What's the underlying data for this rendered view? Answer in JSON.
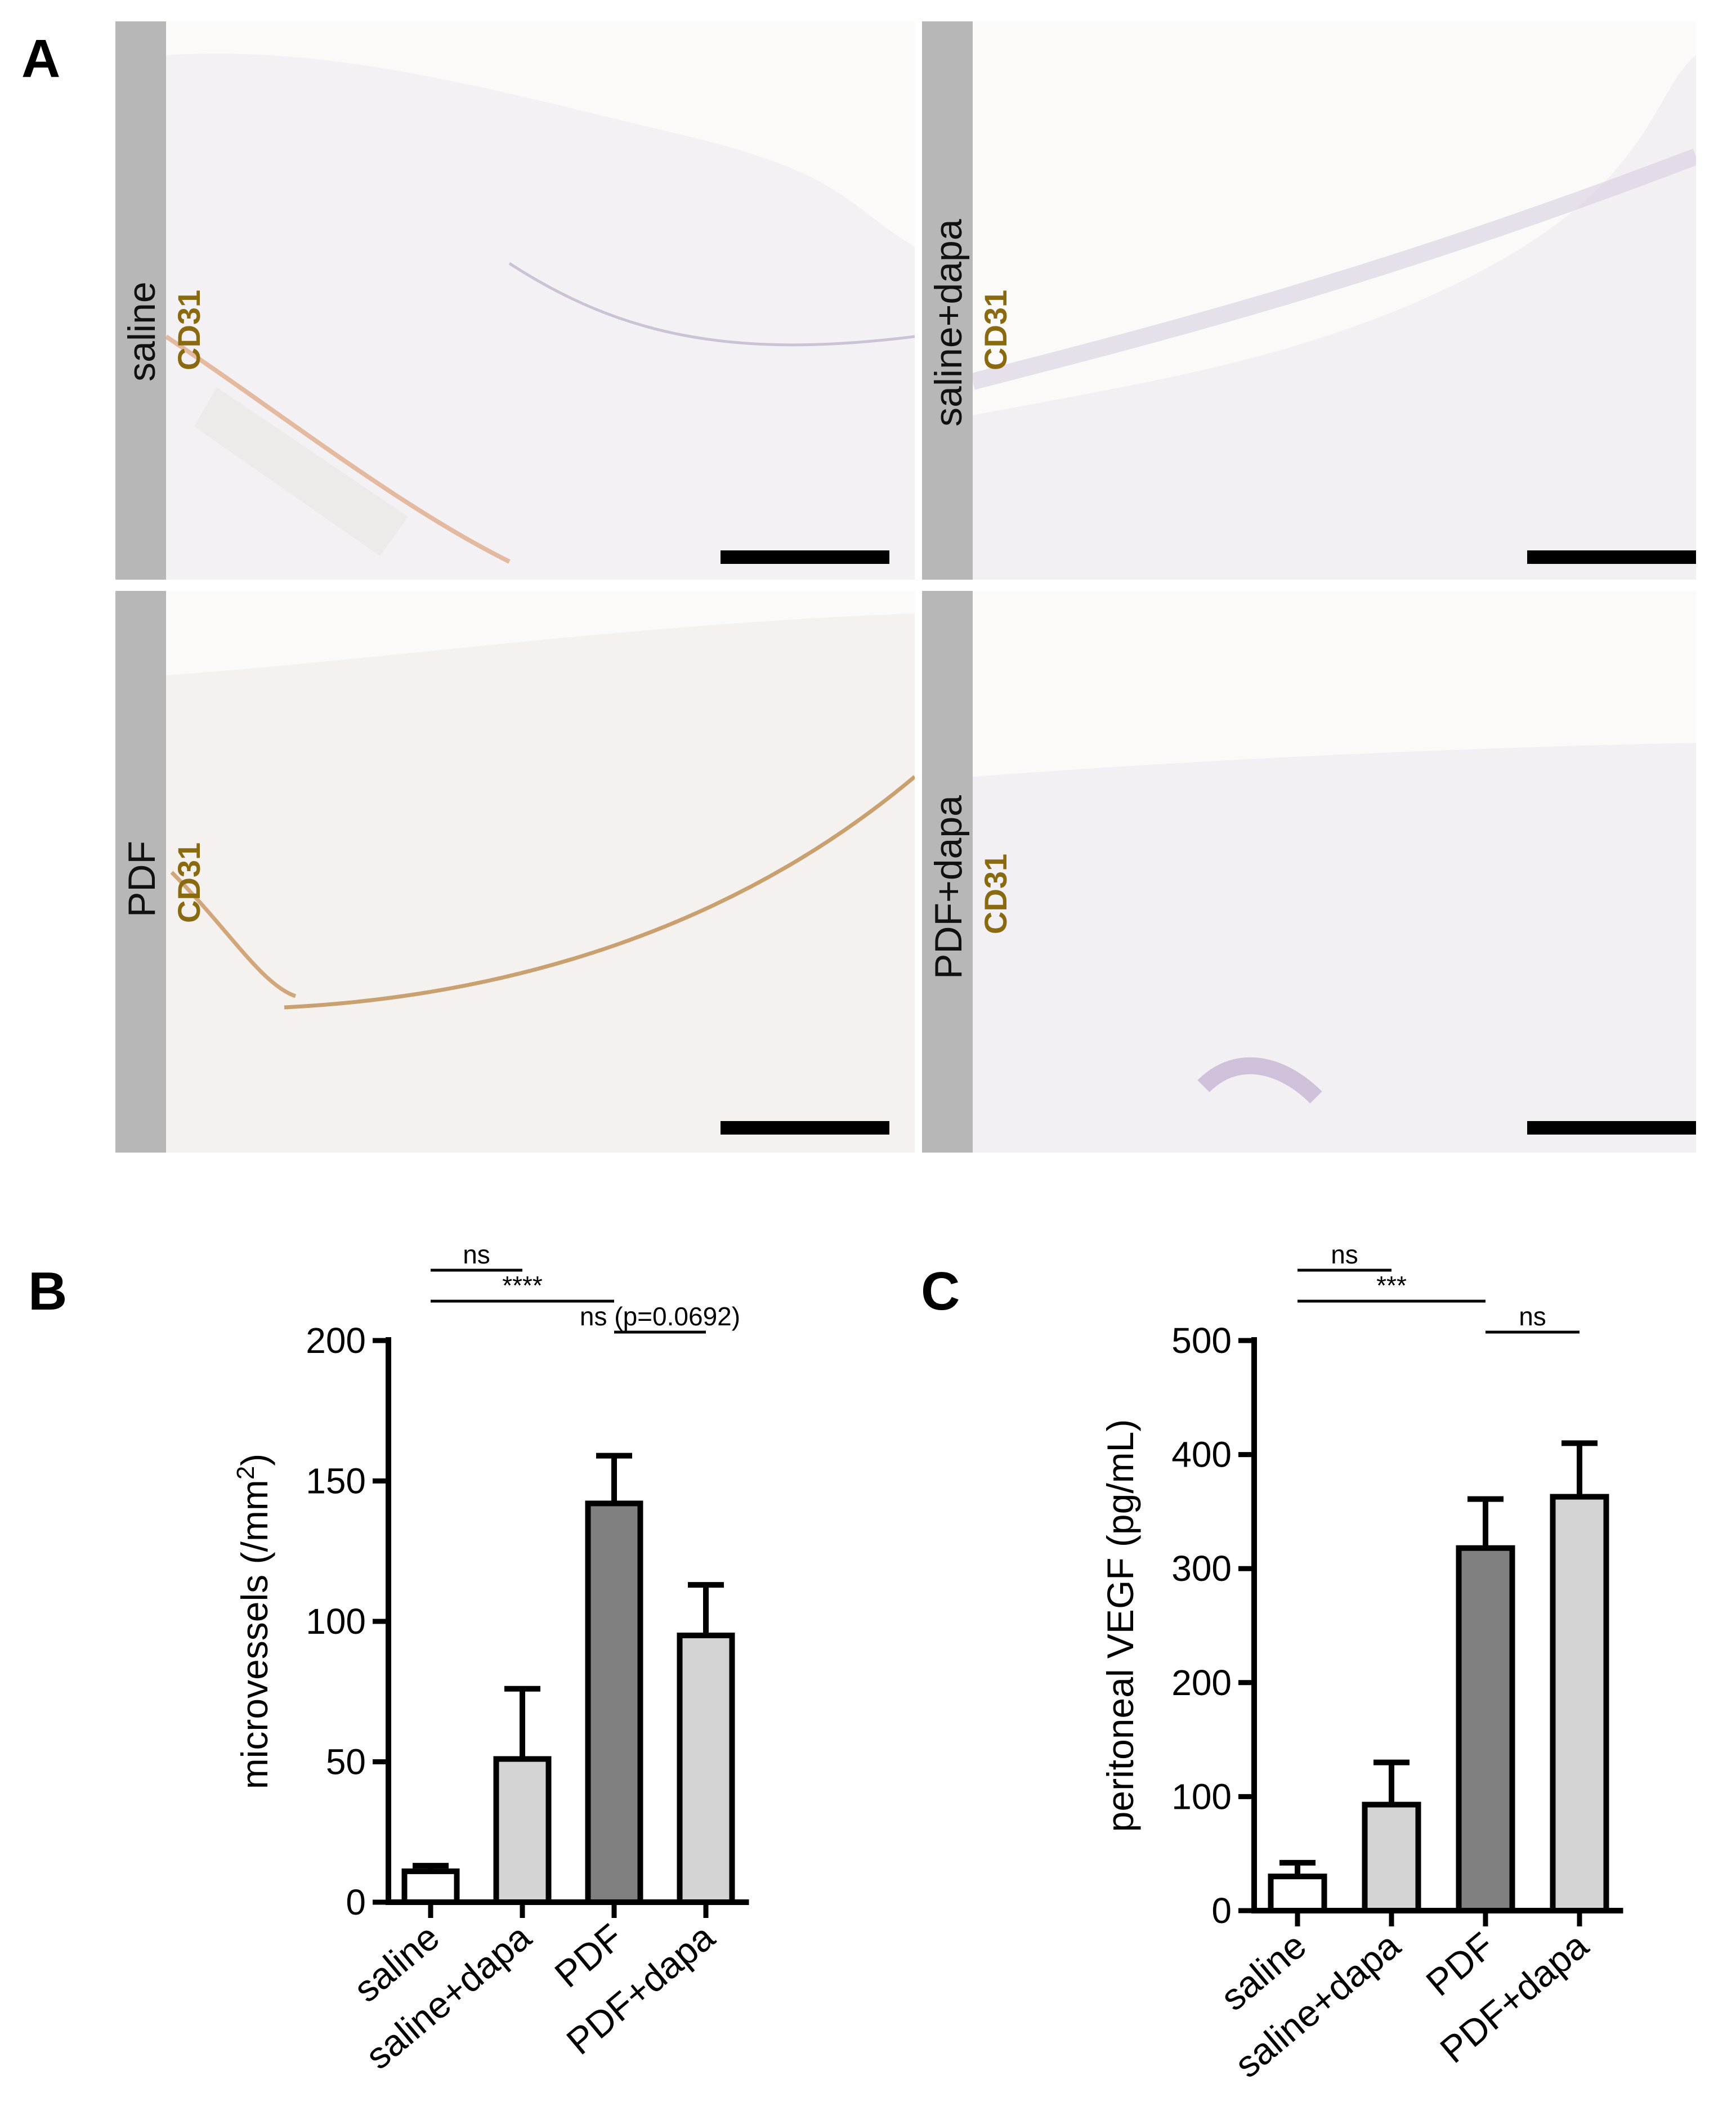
{
  "panels": {
    "a": {
      "letter": "A"
    },
    "b": {
      "letter": "B"
    },
    "c": {
      "letter": "C"
    }
  },
  "micrographs": [
    {
      "condition": "saline",
      "stain": "CD31"
    },
    {
      "condition": "saline+dapa",
      "stain": "CD31"
    },
    {
      "condition": "PDF",
      "stain": "CD31"
    },
    {
      "condition": "PDF+dapa",
      "stain": "CD31"
    }
  ],
  "colors": {
    "saline": "#ffffff",
    "saline_dapa": "#d4d4d4",
    "pdf": "#808080",
    "pdf_dapa": "#d4d4d4",
    "stain": "#8a6a10",
    "side_bar": "#b7b7b7"
  },
  "chart_data": [
    {
      "type": "bar",
      "panel": "B",
      "categories": [
        "saline",
        "saline+dapa",
        "PDF",
        "PDF+dapa"
      ],
      "values": [
        11,
        51,
        142,
        95
      ],
      "errors": [
        2,
        25,
        17,
        18
      ],
      "ylabel": "microvessels (/mm",
      "ylabel_sup": "2",
      "ylabel_end": ")",
      "ylim": [
        0,
        200
      ],
      "yticks": [
        "0",
        "50",
        "100",
        "150",
        "200"
      ],
      "comparisons": [
        {
          "from": 0,
          "to": 1,
          "label": "ns",
          "level": 0
        },
        {
          "from": 0,
          "to": 2,
          "label": "****",
          "level": 1
        },
        {
          "from": 2,
          "to": 3,
          "label": "ns (p=0.0692)",
          "level": 2
        }
      ]
    },
    {
      "type": "bar",
      "panel": "C",
      "categories": [
        "saline",
        "saline+dapa",
        "PDF",
        "PDF+dapa"
      ],
      "values": [
        30,
        93,
        318,
        363
      ],
      "errors": [
        12,
        37,
        43,
        47
      ],
      "ylabel": "peritoneal VEGF (pg/mL)",
      "ylabel_sup": "",
      "ylabel_end": "",
      "ylim": [
        0,
        500
      ],
      "yticks": [
        "0",
        "100",
        "200",
        "300",
        "400",
        "500"
      ],
      "comparisons": [
        {
          "from": 0,
          "to": 1,
          "label": "ns",
          "level": 0
        },
        {
          "from": 0,
          "to": 2,
          "label": "***",
          "level": 1
        },
        {
          "from": 2,
          "to": 3,
          "label": "ns",
          "level": 2
        }
      ]
    }
  ]
}
